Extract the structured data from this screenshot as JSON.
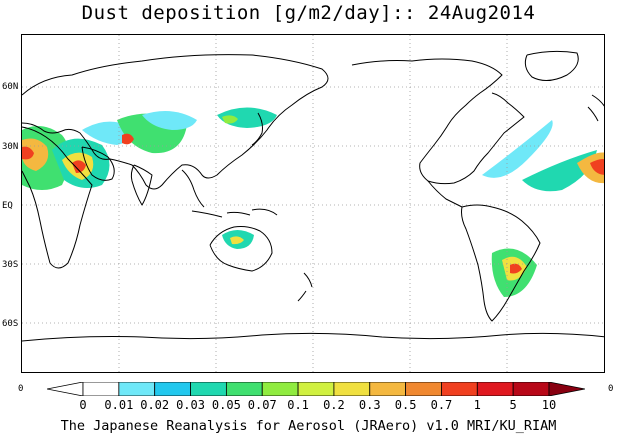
{
  "title": "Dust deposition [g/m2/day]:: 24Aug2014",
  "credit": "The Japanese Reanalysis for Aerosol (JRAero) v1.0 MRI/KU_RIAM",
  "lat_labels": [
    "60N",
    "30N",
    "EQ",
    "30S",
    "60S"
  ],
  "corner_labels": {
    "left": "0",
    "right": "0"
  },
  "colorbar": {
    "labels": [
      "0",
      "0.01",
      "0.02",
      "0.03",
      "0.05",
      "0.07",
      "0.1",
      "0.2",
      "0.3",
      "0.5",
      "0.7",
      "1",
      "5",
      "10"
    ],
    "colors": [
      "#ffffff",
      "#ffffff",
      "#6fe8f8",
      "#22c8ee",
      "#20d8b0",
      "#40e070",
      "#90ec40",
      "#d0f040",
      "#f0e040",
      "#f4b840",
      "#f08830",
      "#f04020",
      "#e01820",
      "#b80818",
      "#880010"
    ]
  },
  "colors": {
    "coast": "#000000",
    "grid": "#9a9a9a"
  }
}
